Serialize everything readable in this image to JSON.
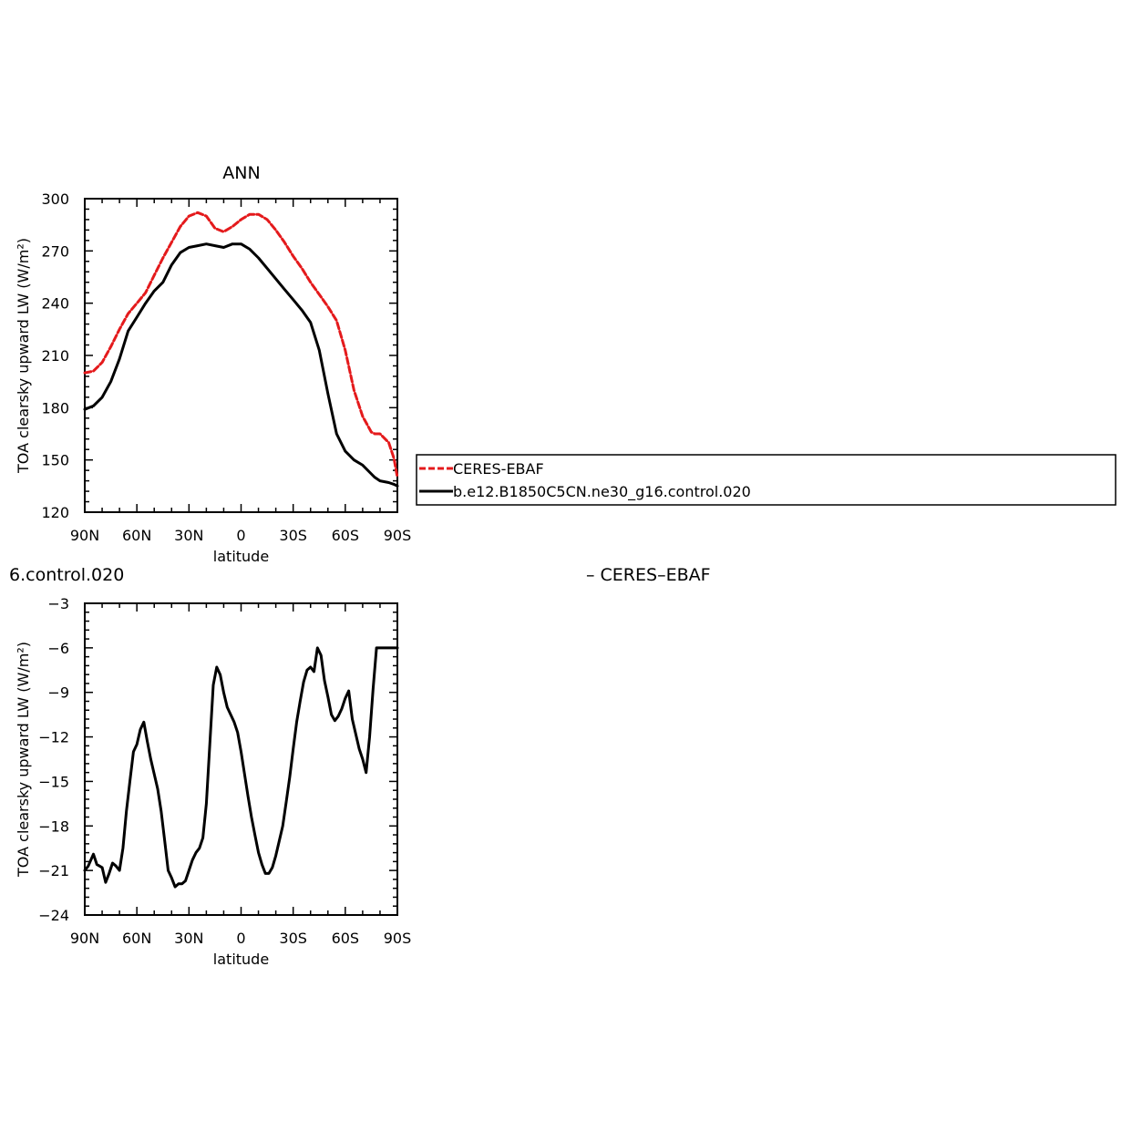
{
  "chart_data": [
    {
      "type": "line",
      "title": "ANN",
      "xlabel": "latitude",
      "ylabel": "TOA clearsky upward LW (W/m²)",
      "xlim": [
        90,
        -90
      ],
      "ylim": [
        120,
        300
      ],
      "x_ticks": [
        90,
        60,
        30,
        0,
        -30,
        -60,
        -90
      ],
      "x_tick_labels": [
        "90N",
        "60N",
        "30N",
        "0",
        "30S",
        "60S",
        "90S"
      ],
      "y_ticks": [
        120,
        150,
        180,
        210,
        240,
        270,
        300
      ],
      "y_tick_labels": [
        "120",
        "150",
        "180",
        "210",
        "240",
        "270",
        "300"
      ],
      "grid": false,
      "legend_position": "right",
      "series": [
        {
          "name": "CERES-EBAF",
          "color": "#e41a1c",
          "dash": "dashed",
          "x": [
            90,
            85,
            80,
            75,
            70,
            65,
            60,
            55,
            50,
            45,
            40,
            35,
            30,
            25,
            20,
            15,
            10,
            5,
            0,
            -5,
            -10,
            -15,
            -20,
            -25,
            -30,
            -35,
            -40,
            -45,
            -50,
            -55,
            -60,
            -65,
            -70,
            -75,
            -77,
            -80,
            -85,
            -88,
            -90
          ],
          "y": [
            200,
            201,
            206,
            215,
            225,
            234,
            240,
            246,
            256,
            266,
            275,
            284,
            290,
            292,
            290,
            283,
            281,
            284,
            288,
            291,
            291,
            288,
            282,
            275,
            267,
            260,
            252,
            245,
            238,
            230,
            213,
            190,
            175,
            166,
            165,
            165,
            160,
            151,
            140
          ]
        },
        {
          "name": "b.e12.B1850C5CN.ne30_g16.control.020",
          "color": "#000000",
          "dash": "solid",
          "x": [
            90,
            85,
            80,
            75,
            70,
            65,
            60,
            55,
            50,
            45,
            40,
            35,
            30,
            25,
            20,
            15,
            10,
            5,
            0,
            -5,
            -10,
            -15,
            -20,
            -25,
            -30,
            -35,
            -40,
            -45,
            -50,
            -55,
            -60,
            -65,
            -70,
            -75,
            -77,
            -80,
            -85,
            -88,
            -90
          ],
          "y": [
            179,
            181,
            186,
            195,
            208,
            224,
            232,
            240,
            247,
            252,
            262,
            269,
            272,
            273,
            274,
            273,
            272,
            274,
            274,
            271,
            266,
            260,
            254,
            248,
            242,
            236,
            229,
            213,
            188,
            165,
            155,
            150,
            147,
            142,
            140,
            138,
            137,
            136,
            135
          ]
        }
      ]
    },
    {
      "type": "line",
      "title": "6.control.020",
      "subtitle": "– CERES–EBAF",
      "xlabel": "latitude",
      "ylabel": "TOA clearsky upward LW (W/m²)",
      "xlim": [
        90,
        -90
      ],
      "ylim": [
        -24,
        -3
      ],
      "x_ticks": [
        90,
        60,
        30,
        0,
        -30,
        -60,
        -90
      ],
      "x_tick_labels": [
        "90N",
        "60N",
        "30N",
        "0",
        "30S",
        "60S",
        "90S"
      ],
      "y_ticks": [
        -24,
        -21,
        -18,
        -15,
        -12,
        -9,
        -6,
        -3
      ],
      "y_tick_labels": [
        "−24",
        "−21",
        "−18",
        "−15",
        "−12",
        "−9",
        "−6",
        "−3"
      ],
      "grid": false,
      "series": [
        {
          "color": "#000000",
          "dash": "solid",
          "x": [
            90,
            88,
            85,
            83,
            80,
            78,
            76,
            74,
            72,
            70,
            68,
            66,
            64,
            62,
            60,
            58,
            56,
            54,
            52,
            50,
            48,
            46,
            44,
            42,
            40,
            38,
            36,
            34,
            32,
            30,
            28,
            26,
            24,
            22,
            20,
            18,
            16,
            14,
            12,
            10,
            8,
            6,
            4,
            2,
            0,
            -2,
            -4,
            -6,
            -8,
            -10,
            -12,
            -14,
            -16,
            -18,
            -20,
            -22,
            -24,
            -26,
            -28,
            -30,
            -32,
            -34,
            -36,
            -38,
            -40,
            -42,
            -44,
            -46,
            -48,
            -50,
            -52,
            -54,
            -56,
            -58,
            -60,
            -62,
            -64,
            -66,
            -68,
            -70,
            -72,
            -74,
            -76,
            -78,
            -80,
            -82,
            -84,
            -86,
            -88,
            -90
          ],
          "y": [
            -21.0,
            -20.7,
            -19.9,
            -20.6,
            -20.8,
            -21.8,
            -21.2,
            -20.5,
            -20.7,
            -21.0,
            -19.5,
            -17.0,
            -15.0,
            -13.0,
            -12.5,
            -11.5,
            -11.0,
            -12.3,
            -13.5,
            -14.5,
            -15.5,
            -17.0,
            -19.0,
            -21.0,
            -21.5,
            -22.1,
            -21.9,
            -21.9,
            -21.7,
            -21.0,
            -20.3,
            -19.8,
            -19.5,
            -18.8,
            -16.5,
            -12.5,
            -8.5,
            -7.3,
            -7.8,
            -9.0,
            -10.0,
            -10.5,
            -11.0,
            -11.7,
            -13.0,
            -14.5,
            -16.0,
            -17.4,
            -18.6,
            -19.8,
            -20.6,
            -21.2,
            -21.2,
            -20.8,
            -20.0,
            -19.0,
            -18.0,
            -16.4,
            -14.7,
            -12.8,
            -11.0,
            -9.6,
            -8.3,
            -7.5,
            -7.3,
            -7.6,
            -6.0,
            -6.5,
            -8.2,
            -9.3,
            -10.5,
            -10.9,
            -10.6,
            -10.1,
            -9.4,
            -8.9,
            -10.8,
            -11.8,
            -12.8,
            -13.5,
            -14.4,
            -12.0,
            -8.8,
            -6.0,
            -6.0,
            -6.0,
            -6.0,
            -6.0,
            -6.0,
            -6.0
          ]
        }
      ]
    }
  ]
}
